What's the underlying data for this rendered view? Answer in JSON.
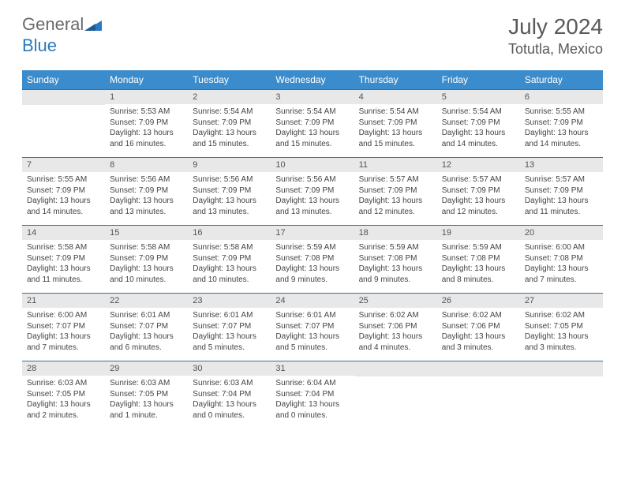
{
  "brand": {
    "first": "General",
    "second": "Blue"
  },
  "colors": {
    "header_bg": "#3b8ccc",
    "header_text": "#ffffff",
    "rule": "#3b6f9e",
    "daynum_bg": "#e8e8e8",
    "text": "#555555",
    "logo_gray": "#6a6a6a",
    "logo_blue": "#2a7ac0"
  },
  "title": "July 2024",
  "location": "Totutla, Mexico",
  "weekdays": [
    "Sunday",
    "Monday",
    "Tuesday",
    "Wednesday",
    "Thursday",
    "Friday",
    "Saturday"
  ],
  "weeks": [
    [
      {
        "num": "",
        "sunrise": "",
        "sunset": "",
        "daylight": ""
      },
      {
        "num": "1",
        "sunrise": "Sunrise: 5:53 AM",
        "sunset": "Sunset: 7:09 PM",
        "daylight": "Daylight: 13 hours and 16 minutes."
      },
      {
        "num": "2",
        "sunrise": "Sunrise: 5:54 AM",
        "sunset": "Sunset: 7:09 PM",
        "daylight": "Daylight: 13 hours and 15 minutes."
      },
      {
        "num": "3",
        "sunrise": "Sunrise: 5:54 AM",
        "sunset": "Sunset: 7:09 PM",
        "daylight": "Daylight: 13 hours and 15 minutes."
      },
      {
        "num": "4",
        "sunrise": "Sunrise: 5:54 AM",
        "sunset": "Sunset: 7:09 PM",
        "daylight": "Daylight: 13 hours and 15 minutes."
      },
      {
        "num": "5",
        "sunrise": "Sunrise: 5:54 AM",
        "sunset": "Sunset: 7:09 PM",
        "daylight": "Daylight: 13 hours and 14 minutes."
      },
      {
        "num": "6",
        "sunrise": "Sunrise: 5:55 AM",
        "sunset": "Sunset: 7:09 PM",
        "daylight": "Daylight: 13 hours and 14 minutes."
      }
    ],
    [
      {
        "num": "7",
        "sunrise": "Sunrise: 5:55 AM",
        "sunset": "Sunset: 7:09 PM",
        "daylight": "Daylight: 13 hours and 14 minutes."
      },
      {
        "num": "8",
        "sunrise": "Sunrise: 5:56 AM",
        "sunset": "Sunset: 7:09 PM",
        "daylight": "Daylight: 13 hours and 13 minutes."
      },
      {
        "num": "9",
        "sunrise": "Sunrise: 5:56 AM",
        "sunset": "Sunset: 7:09 PM",
        "daylight": "Daylight: 13 hours and 13 minutes."
      },
      {
        "num": "10",
        "sunrise": "Sunrise: 5:56 AM",
        "sunset": "Sunset: 7:09 PM",
        "daylight": "Daylight: 13 hours and 13 minutes."
      },
      {
        "num": "11",
        "sunrise": "Sunrise: 5:57 AM",
        "sunset": "Sunset: 7:09 PM",
        "daylight": "Daylight: 13 hours and 12 minutes."
      },
      {
        "num": "12",
        "sunrise": "Sunrise: 5:57 AM",
        "sunset": "Sunset: 7:09 PM",
        "daylight": "Daylight: 13 hours and 12 minutes."
      },
      {
        "num": "13",
        "sunrise": "Sunrise: 5:57 AM",
        "sunset": "Sunset: 7:09 PM",
        "daylight": "Daylight: 13 hours and 11 minutes."
      }
    ],
    [
      {
        "num": "14",
        "sunrise": "Sunrise: 5:58 AM",
        "sunset": "Sunset: 7:09 PM",
        "daylight": "Daylight: 13 hours and 11 minutes."
      },
      {
        "num": "15",
        "sunrise": "Sunrise: 5:58 AM",
        "sunset": "Sunset: 7:09 PM",
        "daylight": "Daylight: 13 hours and 10 minutes."
      },
      {
        "num": "16",
        "sunrise": "Sunrise: 5:58 AM",
        "sunset": "Sunset: 7:09 PM",
        "daylight": "Daylight: 13 hours and 10 minutes."
      },
      {
        "num": "17",
        "sunrise": "Sunrise: 5:59 AM",
        "sunset": "Sunset: 7:08 PM",
        "daylight": "Daylight: 13 hours and 9 minutes."
      },
      {
        "num": "18",
        "sunrise": "Sunrise: 5:59 AM",
        "sunset": "Sunset: 7:08 PM",
        "daylight": "Daylight: 13 hours and 9 minutes."
      },
      {
        "num": "19",
        "sunrise": "Sunrise: 5:59 AM",
        "sunset": "Sunset: 7:08 PM",
        "daylight": "Daylight: 13 hours and 8 minutes."
      },
      {
        "num": "20",
        "sunrise": "Sunrise: 6:00 AM",
        "sunset": "Sunset: 7:08 PM",
        "daylight": "Daylight: 13 hours and 7 minutes."
      }
    ],
    [
      {
        "num": "21",
        "sunrise": "Sunrise: 6:00 AM",
        "sunset": "Sunset: 7:07 PM",
        "daylight": "Daylight: 13 hours and 7 minutes."
      },
      {
        "num": "22",
        "sunrise": "Sunrise: 6:01 AM",
        "sunset": "Sunset: 7:07 PM",
        "daylight": "Daylight: 13 hours and 6 minutes."
      },
      {
        "num": "23",
        "sunrise": "Sunrise: 6:01 AM",
        "sunset": "Sunset: 7:07 PM",
        "daylight": "Daylight: 13 hours and 5 minutes."
      },
      {
        "num": "24",
        "sunrise": "Sunrise: 6:01 AM",
        "sunset": "Sunset: 7:07 PM",
        "daylight": "Daylight: 13 hours and 5 minutes."
      },
      {
        "num": "25",
        "sunrise": "Sunrise: 6:02 AM",
        "sunset": "Sunset: 7:06 PM",
        "daylight": "Daylight: 13 hours and 4 minutes."
      },
      {
        "num": "26",
        "sunrise": "Sunrise: 6:02 AM",
        "sunset": "Sunset: 7:06 PM",
        "daylight": "Daylight: 13 hours and 3 minutes."
      },
      {
        "num": "27",
        "sunrise": "Sunrise: 6:02 AM",
        "sunset": "Sunset: 7:05 PM",
        "daylight": "Daylight: 13 hours and 3 minutes."
      }
    ],
    [
      {
        "num": "28",
        "sunrise": "Sunrise: 6:03 AM",
        "sunset": "Sunset: 7:05 PM",
        "daylight": "Daylight: 13 hours and 2 minutes."
      },
      {
        "num": "29",
        "sunrise": "Sunrise: 6:03 AM",
        "sunset": "Sunset: 7:05 PM",
        "daylight": "Daylight: 13 hours and 1 minute."
      },
      {
        "num": "30",
        "sunrise": "Sunrise: 6:03 AM",
        "sunset": "Sunset: 7:04 PM",
        "daylight": "Daylight: 13 hours and 0 minutes."
      },
      {
        "num": "31",
        "sunrise": "Sunrise: 6:04 AM",
        "sunset": "Sunset: 7:04 PM",
        "daylight": "Daylight: 13 hours and 0 minutes."
      },
      {
        "num": "",
        "sunrise": "",
        "sunset": "",
        "daylight": ""
      },
      {
        "num": "",
        "sunrise": "",
        "sunset": "",
        "daylight": ""
      },
      {
        "num": "",
        "sunrise": "",
        "sunset": "",
        "daylight": ""
      }
    ]
  ]
}
